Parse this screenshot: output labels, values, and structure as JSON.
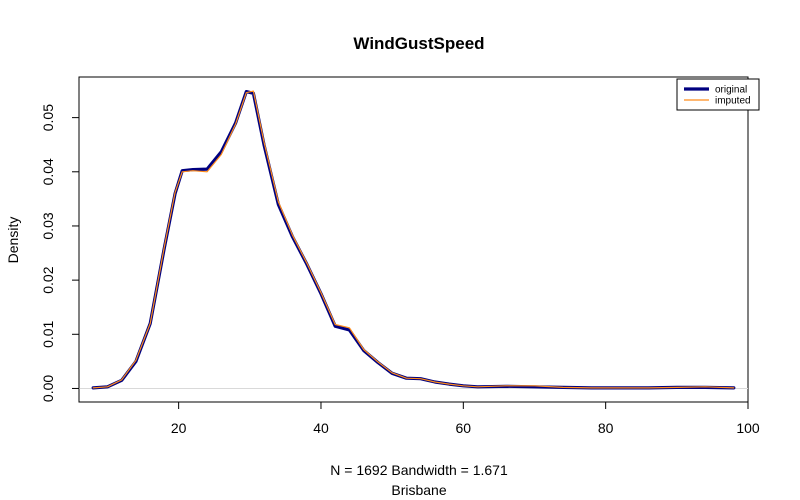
{
  "chart_data": {
    "type": "line",
    "title": "WindGustSpeed",
    "xlabel": "N = 1692   Bandwidth = 1.671",
    "subtitle": "Brisbane",
    "ylabel": "Density",
    "xlim": [
      6,
      100
    ],
    "ylim": [
      -0.0025,
      0.0575
    ],
    "x_ticks": [
      "20",
      "40",
      "60",
      "80",
      "100"
    ],
    "y_ticks": [
      "0.00",
      "0.01",
      "0.02",
      "0.03",
      "0.04",
      "0.05"
    ],
    "grid": false,
    "legend_position": "top-right",
    "series": [
      {
        "name": "original",
        "color": "#000080",
        "points": [
          [
            8,
            0.0001
          ],
          [
            10,
            0.0003
          ],
          [
            12,
            0.0015
          ],
          [
            14,
            0.005
          ],
          [
            16,
            0.012
          ],
          [
            18,
            0.026
          ],
          [
            19.5,
            0.036
          ],
          [
            20.5,
            0.0402
          ],
          [
            22,
            0.0404
          ],
          [
            24,
            0.0405
          ],
          [
            26,
            0.0437
          ],
          [
            28,
            0.049
          ],
          [
            29.5,
            0.0548
          ],
          [
            30.5,
            0.0545
          ],
          [
            32,
            0.045
          ],
          [
            34,
            0.034
          ],
          [
            36,
            0.028
          ],
          [
            38,
            0.023
          ],
          [
            40,
            0.0175
          ],
          [
            42,
            0.0115
          ],
          [
            44,
            0.0108
          ],
          [
            46,
            0.007
          ],
          [
            48,
            0.0048
          ],
          [
            50,
            0.0028
          ],
          [
            52,
            0.0019
          ],
          [
            54,
            0.0018
          ],
          [
            56,
            0.0012
          ],
          [
            58,
            0.0008
          ],
          [
            60,
            0.0005
          ],
          [
            62,
            0.0003
          ],
          [
            66,
            0.0004
          ],
          [
            70,
            0.0003
          ],
          [
            74,
            0.0002
          ],
          [
            78,
            0.0001
          ],
          [
            82,
            0.0001
          ],
          [
            86,
            0.0001
          ],
          [
            90,
            0.0002
          ],
          [
            94,
            0.0002
          ],
          [
            98,
            0.0001
          ]
        ]
      },
      {
        "name": "imputed",
        "color": "#ff8c1a",
        "points": [
          [
            8,
            0.0001
          ],
          [
            10,
            0.0003
          ],
          [
            12,
            0.0016
          ],
          [
            14,
            0.0052
          ],
          [
            16,
            0.012
          ],
          [
            18,
            0.0262
          ],
          [
            19.5,
            0.0362
          ],
          [
            20.5,
            0.04
          ],
          [
            22,
            0.0402
          ],
          [
            24,
            0.04
          ],
          [
            26,
            0.0432
          ],
          [
            28,
            0.0488
          ],
          [
            29.5,
            0.0546
          ],
          [
            30.5,
            0.0549
          ],
          [
            32,
            0.0455
          ],
          [
            34,
            0.0345
          ],
          [
            36,
            0.0283
          ],
          [
            38,
            0.0232
          ],
          [
            40,
            0.0177
          ],
          [
            42,
            0.0118
          ],
          [
            44,
            0.0112
          ],
          [
            46,
            0.0072
          ],
          [
            48,
            0.0049
          ],
          [
            50,
            0.0029
          ],
          [
            52,
            0.0019
          ],
          [
            54,
            0.0018
          ],
          [
            56,
            0.0012
          ],
          [
            58,
            0.0008
          ],
          [
            60,
            0.0005
          ],
          [
            62,
            0.0003
          ],
          [
            66,
            0.0005
          ],
          [
            70,
            0.0005
          ],
          [
            74,
            0.0002
          ],
          [
            78,
            0.0001
          ],
          [
            82,
            0.0001
          ],
          [
            86,
            0.0001
          ],
          [
            90,
            0.0002
          ],
          [
            94,
            0.0003
          ],
          [
            98,
            0.0001
          ]
        ]
      }
    ]
  }
}
